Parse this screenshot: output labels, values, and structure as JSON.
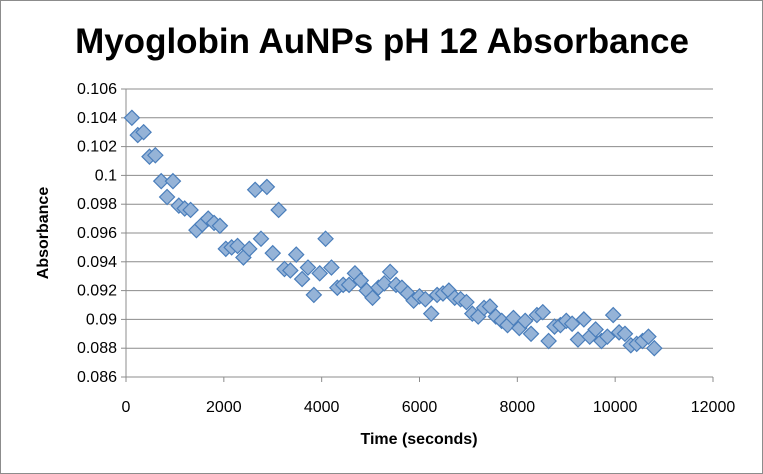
{
  "chart_data": {
    "type": "scatter",
    "title": "Myoglobin AuNPs pH 12 Absorbance",
    "xlabel": "Time (seconds)",
    "ylabel": "Absorbance",
    "xlim": [
      0,
      12000
    ],
    "ylim": [
      0.086,
      0.106
    ],
    "xticks": [
      "0",
      "2000",
      "4000",
      "6000",
      "8000",
      "10000",
      "12000"
    ],
    "yticks": [
      "0.086",
      "0.088",
      "0.09",
      "0.092",
      "0.094",
      "0.096",
      "0.098",
      "0.1",
      "0.102",
      "0.104",
      "0.106"
    ],
    "grid": true,
    "legend": "none",
    "marker_color": "#4a7ebb",
    "marker_fill": "#95b3d7",
    "series": [
      {
        "marker": "diamond",
        "x": [
          120,
          240,
          360,
          480,
          600,
          720,
          840,
          960,
          1080,
          1200,
          1320,
          1440,
          1560,
          1680,
          1800,
          1920,
          2040,
          2160,
          2280,
          2400,
          2520,
          2640,
          2760,
          2880,
          3000,
          3120,
          3240,
          3360,
          3480,
          3600,
          3720,
          3840,
          3960,
          4080,
          4200,
          4320,
          4440,
          4560,
          4680,
          4800,
          4920,
          5040,
          5160,
          5280,
          5400,
          5520,
          5640,
          5760,
          5880,
          6000,
          6120,
          6240,
          6360,
          6480,
          6600,
          6720,
          6840,
          6960,
          7080,
          7200,
          7320,
          7440,
          7560,
          7680,
          7800,
          7920,
          8040,
          8160,
          8280,
          8400,
          8520,
          8640,
          8760,
          8880,
          9000,
          9120,
          9240,
          9360,
          9480,
          9600,
          9720,
          9840,
          9960,
          10080,
          10200,
          10320,
          10440,
          10560,
          10680,
          10800
        ],
        "y": [
          0.104,
          0.1028,
          0.103,
          0.1013,
          0.1014,
          0.0996,
          0.0985,
          0.0996,
          0.0979,
          0.0977,
          0.0976,
          0.0962,
          0.0966,
          0.097,
          0.0967,
          0.0965,
          0.0949,
          0.095,
          0.0951,
          0.0943,
          0.0949,
          0.099,
          0.0956,
          0.0992,
          0.0946,
          0.0976,
          0.0935,
          0.0934,
          0.0945,
          0.0928,
          0.0936,
          0.0917,
          0.0932,
          0.0956,
          0.0936,
          0.0922,
          0.0924,
          0.0924,
          0.0932,
          0.0927,
          0.092,
          0.0915,
          0.0922,
          0.0925,
          0.0933,
          0.0924,
          0.0922,
          0.0918,
          0.0913,
          0.0916,
          0.0914,
          0.0904,
          0.0917,
          0.0918,
          0.092,
          0.0915,
          0.0914,
          0.0912,
          0.0904,
          0.0902,
          0.0908,
          0.0909,
          0.0902,
          0.0899,
          0.0896,
          0.0901,
          0.0894,
          0.0899,
          0.089,
          0.0903,
          0.0905,
          0.0885,
          0.0895,
          0.0896,
          0.0899,
          0.0897,
          0.0886,
          0.09,
          0.0888,
          0.0893,
          0.0885,
          0.0888,
          0.0903,
          0.0891,
          0.089,
          0.0882,
          0.0883,
          0.0885,
          0.0888,
          0.088
        ]
      }
    ]
  }
}
